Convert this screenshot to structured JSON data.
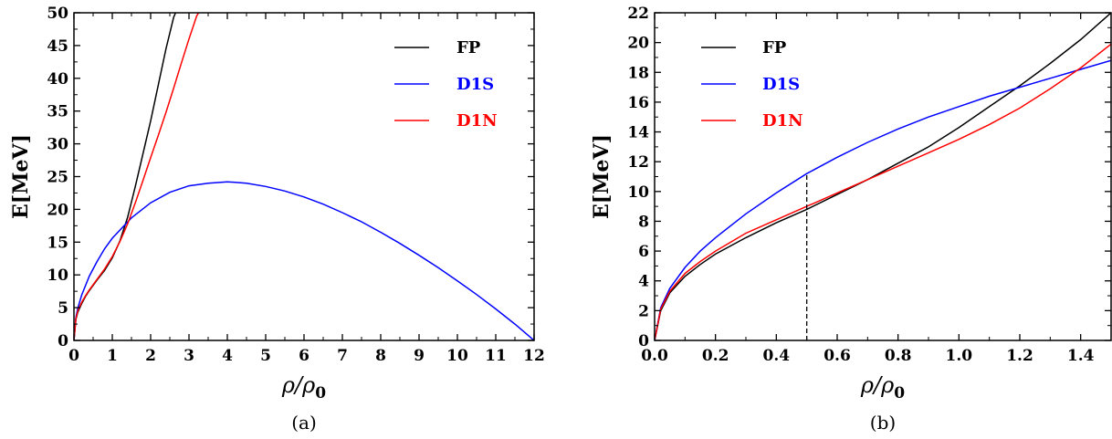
{
  "chart_data": [
    {
      "type": "line",
      "caption": "(a)",
      "ylabel": "E[MeV]",
      "xlabel": "ρ/ρ",
      "xlabel_sub": "0",
      "xlim": [
        0,
        12
      ],
      "ylim": [
        0,
        50
      ],
      "xticks": [
        0,
        1,
        2,
        3,
        4,
        5,
        6,
        7,
        8,
        9,
        10,
        11,
        12
      ],
      "yticks": [
        0,
        5,
        10,
        15,
        20,
        25,
        30,
        35,
        40,
        45,
        50
      ],
      "xtick_labels": [
        "0",
        "1",
        "2",
        "3",
        "4",
        "5",
        "6",
        "7",
        "8",
        "9",
        "10",
        "11",
        "12"
      ],
      "ytick_labels": [
        "0",
        "5",
        "10",
        "15",
        "20",
        "25",
        "30",
        "35",
        "40",
        "45",
        "50"
      ],
      "legend_position": "top-right",
      "series": [
        {
          "name": "FP",
          "color": "#000000",
          "x": [
            0,
            0.05,
            0.1,
            0.2,
            0.3,
            0.4,
            0.5,
            0.6,
            0.8,
            1.0,
            1.2,
            1.4,
            1.6,
            1.8,
            2.0,
            2.2,
            2.4,
            2.6,
            2.65
          ],
          "y": [
            0,
            3.2,
            4.3,
            5.6,
            6.7,
            7.6,
            8.4,
            9.2,
            10.7,
            12.6,
            15.2,
            18.8,
            23.5,
            28.5,
            33.5,
            39,
            44.5,
            49.3,
            50
          ]
        },
        {
          "name": "D1S",
          "color": "#0000ff",
          "x": [
            0,
            0.05,
            0.1,
            0.2,
            0.4,
            0.6,
            0.8,
            1.0,
            1.5,
            2.0,
            2.5,
            3.0,
            3.5,
            4.0,
            4.5,
            5.0,
            5.5,
            6.0,
            6.5,
            7.0,
            7.5,
            8.0,
            8.5,
            9.0,
            9.5,
            10.0,
            10.5,
            11.0,
            11.5,
            12.0
          ],
          "y": [
            0,
            3.5,
            4.9,
            6.9,
            9.8,
            12.0,
            14.0,
            15.6,
            18.7,
            21.0,
            22.6,
            23.6,
            24.0,
            24.2,
            24.0,
            23.5,
            22.8,
            21.9,
            20.8,
            19.5,
            18.1,
            16.5,
            14.8,
            13.0,
            11.1,
            9.1,
            7.0,
            4.8,
            2.5,
            0
          ]
        },
        {
          "name": "D1N",
          "color": "#ff0000",
          "x": [
            0,
            0.05,
            0.1,
            0.2,
            0.3,
            0.4,
            0.5,
            0.6,
            0.8,
            1.0,
            1.2,
            1.4,
            1.6,
            1.8,
            2.0,
            2.2,
            2.4,
            2.6,
            2.8,
            3.0,
            3.2,
            3.25
          ],
          "y": [
            0,
            3.3,
            4.5,
            5.8,
            6.8,
            7.7,
            8.5,
            9.3,
            10.9,
            12.8,
            15.1,
            17.8,
            21.0,
            24.4,
            27.9,
            31.3,
            34.8,
            38.5,
            42.3,
            46.0,
            49.5,
            50
          ]
        }
      ]
    },
    {
      "type": "line",
      "caption": "(b)",
      "ylabel": "E[MeV]",
      "xlabel": "ρ/ρ",
      "xlabel_sub": "0",
      "xlim": [
        0,
        1.5
      ],
      "ylim": [
        0,
        22
      ],
      "xticks": [
        0,
        0.2,
        0.4,
        0.6,
        0.8,
        1.0,
        1.2,
        1.4
      ],
      "yticks": [
        0,
        2,
        4,
        6,
        8,
        10,
        12,
        14,
        16,
        18,
        20,
        22
      ],
      "xtick_labels": [
        "0.0",
        "0.2",
        "0.4",
        "0.6",
        "0.8",
        "1.0",
        "1.2",
        "1.4"
      ],
      "ytick_labels": [
        "0",
        "2",
        "4",
        "6",
        "8",
        "10",
        "12",
        "14",
        "16",
        "18",
        "20",
        "22"
      ],
      "legend_position": "top-left",
      "annotation": {
        "type": "dashed-vertical-line",
        "x": 0.5,
        "y_top": 11.2
      },
      "series": [
        {
          "name": "FP",
          "color": "#000000",
          "x": [
            0,
            0.02,
            0.05,
            0.1,
            0.15,
            0.2,
            0.3,
            0.4,
            0.5,
            0.6,
            0.7,
            0.8,
            0.9,
            1.0,
            1.1,
            1.2,
            1.3,
            1.4,
            1.5
          ],
          "y": [
            0,
            2.0,
            3.2,
            4.3,
            5.1,
            5.8,
            6.9,
            7.9,
            8.8,
            9.8,
            10.8,
            11.9,
            13.0,
            14.3,
            15.7,
            17.1,
            18.6,
            20.2,
            22.0
          ]
        },
        {
          "name": "D1S",
          "color": "#0000ff",
          "x": [
            0,
            0.02,
            0.05,
            0.1,
            0.15,
            0.2,
            0.3,
            0.4,
            0.5,
            0.6,
            0.7,
            0.8,
            0.9,
            1.0,
            1.1,
            1.2,
            1.3,
            1.4,
            1.5
          ],
          "y": [
            0,
            2.2,
            3.5,
            4.9,
            6.0,
            6.9,
            8.5,
            9.9,
            11.2,
            12.3,
            13.3,
            14.2,
            15.0,
            15.7,
            16.4,
            17.0,
            17.6,
            18.2,
            18.8
          ]
        },
        {
          "name": "D1N",
          "color": "#ff0000",
          "x": [
            0,
            0.02,
            0.05,
            0.1,
            0.15,
            0.2,
            0.3,
            0.4,
            0.5,
            0.6,
            0.7,
            0.8,
            0.9,
            1.0,
            1.1,
            1.2,
            1.3,
            1.4,
            1.5
          ],
          "y": [
            0,
            2.1,
            3.3,
            4.5,
            5.3,
            6.0,
            7.2,
            8.1,
            9.0,
            9.9,
            10.8,
            11.7,
            12.6,
            13.5,
            14.5,
            15.6,
            16.9,
            18.3,
            19.9
          ]
        }
      ]
    }
  ]
}
